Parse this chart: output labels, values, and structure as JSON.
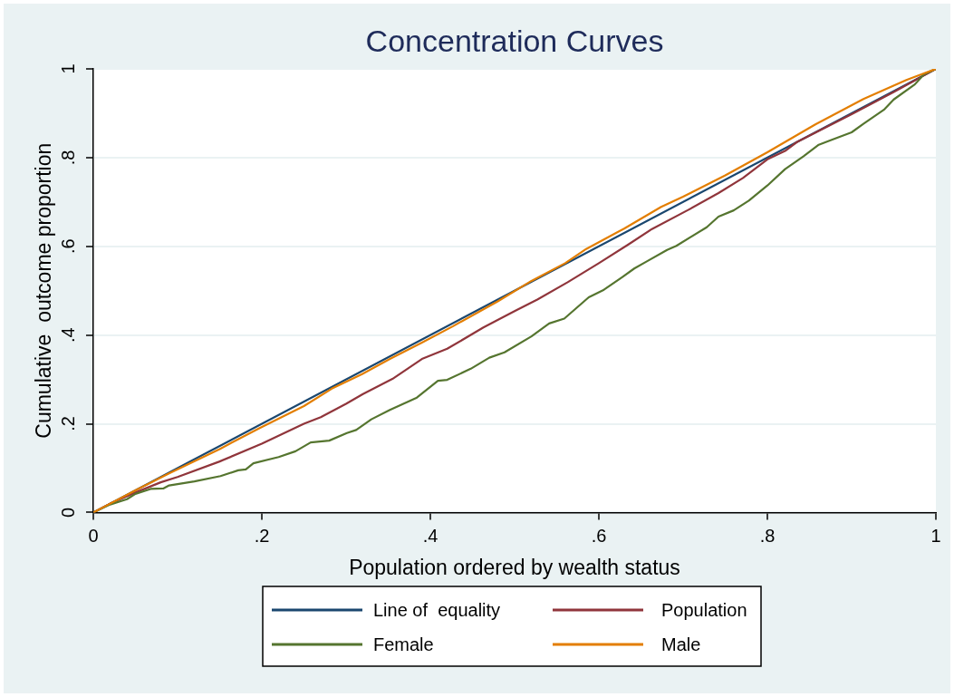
{
  "chart_data": {
    "type": "line",
    "title": "Concentration Curves",
    "xlabel": "Population ordered by wealth status",
    "ylabel": "Cumulative  outcome proportion",
    "xlim": [
      0,
      1
    ],
    "ylim": [
      0,
      1
    ],
    "xticks": [
      0,
      {
        "value": 0.2,
        "label": ".2"
      },
      {
        "value": 0.4,
        "label": ".4"
      },
      {
        "value": 0.6,
        "label": ".6"
      },
      {
        "value": 0.8,
        "label": ".8"
      },
      1
    ],
    "yticks": [
      0,
      {
        "value": 0.2,
        "label": ".2"
      },
      {
        "value": 0.4,
        "label": ".4"
      },
      {
        "value": 0.6,
        "label": ".6"
      },
      {
        "value": 0.8,
        "label": ".8"
      },
      1
    ],
    "grid": "y",
    "legend": "bottom",
    "marker": "none",
    "line_style": "solid",
    "series": [
      {
        "name": "Line of  equality",
        "color": "#1a476f",
        "x": [
          0,
          1
        ],
        "values": [
          0,
          1
        ]
      },
      {
        "name": "Population",
        "color": "#90353b",
        "x": [
          0,
          0.02,
          0.05,
          0.08,
          0.1,
          0.15,
          0.2,
          0.25,
          0.27,
          0.3,
          0.32,
          0.355,
          0.39,
          0.42,
          0.463,
          0.5,
          0.527,
          0.563,
          0.6,
          0.635,
          0.663,
          0.706,
          0.742,
          0.771,
          0.8,
          0.821,
          0.835,
          0.9,
          0.95,
          1
        ],
        "values": [
          0,
          0.02,
          0.045,
          0.068,
          0.08,
          0.115,
          0.155,
          0.2,
          0.215,
          0.245,
          0.267,
          0.301,
          0.346,
          0.369,
          0.417,
          0.454,
          0.48,
          0.519,
          0.562,
          0.604,
          0.639,
          0.682,
          0.72,
          0.754,
          0.796,
          0.815,
          0.835,
          0.898,
          0.948,
          1
        ]
      },
      {
        "name": "Female",
        "color": "#55752f",
        "x": [
          0,
          0.02,
          0.04,
          0.05,
          0.068,
          0.083,
          0.09,
          0.12,
          0.151,
          0.172,
          0.181,
          0.19,
          0.22,
          0.24,
          0.258,
          0.28,
          0.301,
          0.312,
          0.33,
          0.352,
          0.384,
          0.409,
          0.42,
          0.448,
          0.47,
          0.488,
          0.52,
          0.541,
          0.559,
          0.588,
          0.606,
          0.628,
          0.642,
          0.656,
          0.681,
          0.692,
          0.728,
          0.742,
          0.76,
          0.778,
          0.8,
          0.821,
          0.843,
          0.861,
          0.875,
          0.9,
          0.914,
          0.939,
          0.95,
          0.975,
          0.986,
          1
        ],
        "values": [
          0,
          0.018,
          0.03,
          0.042,
          0.053,
          0.054,
          0.061,
          0.07,
          0.082,
          0.095,
          0.097,
          0.111,
          0.125,
          0.138,
          0.158,
          0.162,
          0.179,
          0.186,
          0.21,
          0.231,
          0.259,
          0.297,
          0.299,
          0.324,
          0.349,
          0.361,
          0.397,
          0.426,
          0.437,
          0.485,
          0.502,
          0.531,
          0.55,
          0.565,
          0.592,
          0.601,
          0.643,
          0.667,
          0.681,
          0.703,
          0.737,
          0.774,
          0.803,
          0.829,
          0.839,
          0.857,
          0.876,
          0.909,
          0.931,
          0.965,
          0.988,
          1
        ]
      },
      {
        "name": "Male",
        "color": "#e37e00",
        "x": [
          0,
          0.02,
          0.05,
          0.09,
          0.15,
          0.197,
          0.25,
          0.283,
          0.319,
          0.352,
          0.39,
          0.427,
          0.48,
          0.52,
          0.56,
          0.585,
          0.63,
          0.674,
          0.7,
          0.75,
          0.8,
          0.857,
          0.914,
          0.965,
          1
        ],
        "values": [
          0,
          0.02,
          0.05,
          0.088,
          0.143,
          0.19,
          0.24,
          0.279,
          0.312,
          0.346,
          0.383,
          0.42,
          0.476,
          0.522,
          0.562,
          0.594,
          0.64,
          0.689,
          0.712,
          0.76,
          0.812,
          0.875,
          0.932,
          0.975,
          1
        ]
      }
    ]
  }
}
